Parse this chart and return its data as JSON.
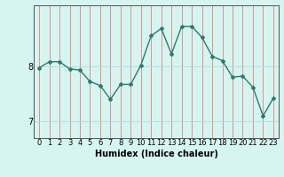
{
  "x": [
    0,
    1,
    2,
    3,
    4,
    5,
    6,
    7,
    8,
    9,
    10,
    11,
    12,
    13,
    14,
    15,
    16,
    17,
    18,
    19,
    20,
    21,
    22,
    23
  ],
  "y": [
    7.97,
    8.08,
    8.08,
    7.95,
    7.93,
    7.72,
    7.65,
    7.4,
    7.67,
    7.67,
    8.02,
    8.55,
    8.68,
    8.22,
    8.72,
    8.72,
    8.52,
    8.18,
    8.1,
    7.8,
    7.82,
    7.62,
    7.1,
    7.42
  ],
  "line_color": "#2d7a6e",
  "marker": "D",
  "markersize": 2.0,
  "linewidth": 1.0,
  "bg_color": "#d6f5f0",
  "vgrid_color": "#e08080",
  "hgrid_color": "#b0ddd8",
  "axis_color": "#555555",
  "xlabel": "Humidex (Indice chaleur)",
  "xlabel_fontsize": 7,
  "yticks": [
    7,
    8
  ],
  "xtick_labels": [
    "0",
    "1",
    "2",
    "3",
    "4",
    "5",
    "6",
    "7",
    "8",
    "9",
    "10",
    "11",
    "12",
    "13",
    "14",
    "15",
    "16",
    "17",
    "18",
    "19",
    "20",
    "21",
    "22",
    "23"
  ],
  "ylim": [
    6.7,
    9.1
  ],
  "xlim": [
    -0.5,
    23.5
  ],
  "tick_fontsize": 6
}
